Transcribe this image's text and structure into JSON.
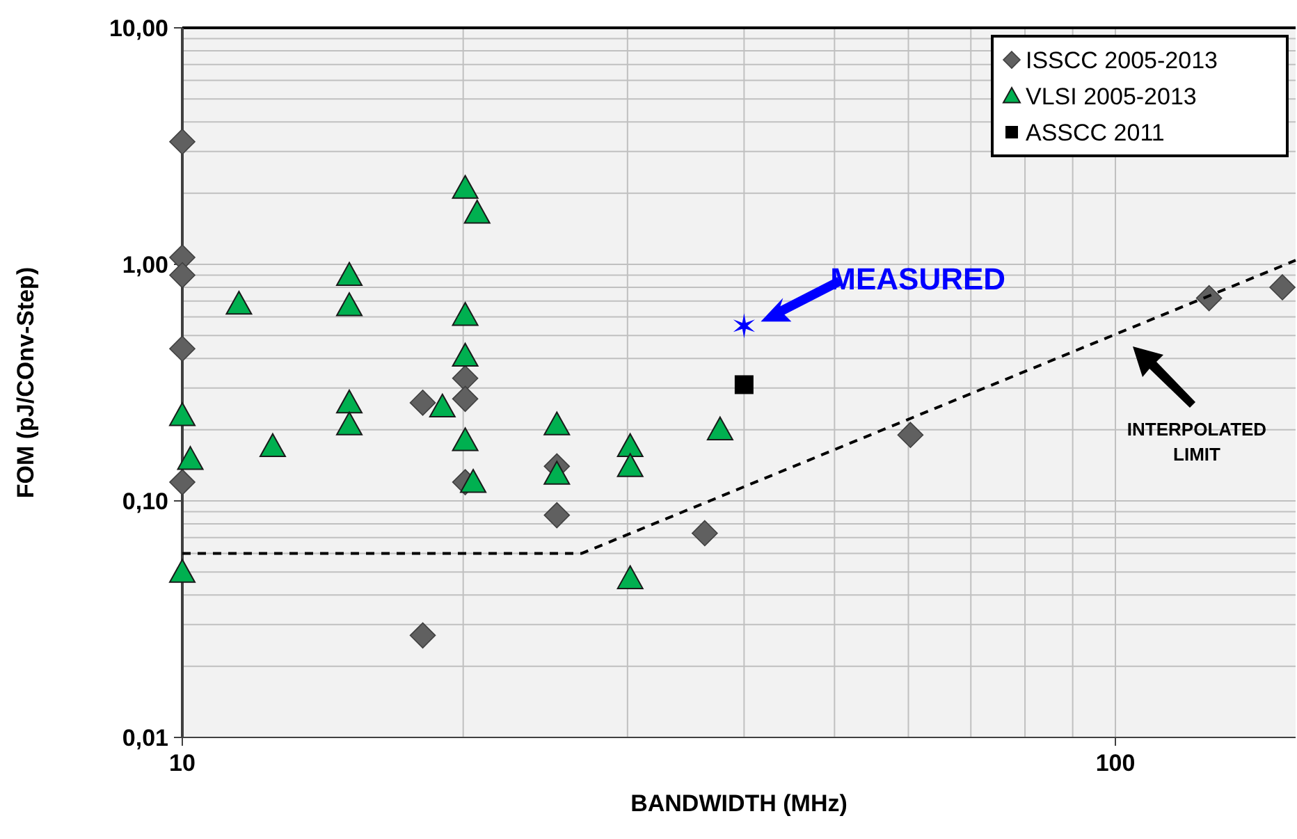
{
  "chart_data": {
    "type": "scatter",
    "xlabel": "BANDWIDTH (MHz)",
    "ylabel": "FOM (pJ/COnv-Step)",
    "log": "xy",
    "grid": true,
    "legend": "top right",
    "xlim": [
      10,
      156
    ],
    "ylim": [
      0.01,
      10
    ],
    "xticks": [
      10,
      {
        "value": 20,
        "label": null
      },
      {
        "value": 30,
        "label": null
      },
      {
        "value": 40,
        "label": null
      },
      {
        "value": 50,
        "label": null
      },
      {
        "value": 60,
        "label": null
      },
      {
        "value": 70,
        "label": null
      },
      {
        "value": 80,
        "label": null
      },
      {
        "value": 90,
        "label": null
      },
      100
    ],
    "yticks": [
      {
        "value": 0.01,
        "label": "0,01"
      },
      {
        "value": 0.02,
        "label": null
      },
      {
        "value": 0.03,
        "label": null
      },
      {
        "value": 0.04,
        "label": null
      },
      {
        "value": 0.05,
        "label": null
      },
      {
        "value": 0.06,
        "label": null
      },
      {
        "value": 0.07,
        "label": null
      },
      {
        "value": 0.08,
        "label": null
      },
      {
        "value": 0.09,
        "label": null
      },
      {
        "value": 0.1,
        "label": "0,10"
      },
      {
        "value": 0.2,
        "label": null
      },
      {
        "value": 0.3,
        "label": null
      },
      {
        "value": 0.4,
        "label": null
      },
      {
        "value": 0.5,
        "label": null
      },
      {
        "value": 0.6,
        "label": null
      },
      {
        "value": 0.7,
        "label": null
      },
      {
        "value": 0.8,
        "label": null
      },
      {
        "value": 0.9,
        "label": null
      },
      {
        "value": 1,
        "label": "1,00"
      },
      {
        "value": 2,
        "label": null
      },
      {
        "value": 3,
        "label": null
      },
      {
        "value": 4,
        "label": null
      },
      {
        "value": 5,
        "label": null
      },
      {
        "value": 6,
        "label": null
      },
      {
        "value": 7,
        "label": null
      },
      {
        "value": 8,
        "label": null
      },
      {
        "value": 9,
        "label": null
      },
      {
        "value": 10,
        "label": "10,00"
      }
    ],
    "series": [
      {
        "name": "ISSCC 2005-2013",
        "marker": "diamond",
        "color": "#606060",
        "x": [
          10,
          10,
          10,
          10,
          10,
          18.1,
          18.1,
          20.1,
          20.1,
          20.1,
          25.2,
          25.2,
          36.3,
          60.3,
          126,
          151
        ],
        "values": [
          3.3,
          1.07,
          0.9,
          0.44,
          0.12,
          0.26,
          0.027,
          0.33,
          0.27,
          0.12,
          0.14,
          0.087,
          0.073,
          0.19,
          0.72,
          0.8
        ]
      },
      {
        "name": "VLSI 2005-2013",
        "marker": "triangle",
        "color": "#00b050",
        "x": [
          10,
          10,
          10.2,
          11.5,
          12.5,
          15.1,
          15.1,
          15.1,
          15.1,
          19,
          20.1,
          20.7,
          20.1,
          20.1,
          20.1,
          20.5,
          25.2,
          25.2,
          30.2,
          30.2,
          30.2,
          37.7
        ],
        "values": [
          0.23,
          0.05,
          0.15,
          0.68,
          0.17,
          0.9,
          0.67,
          0.26,
          0.21,
          0.25,
          2.1,
          1.65,
          0.61,
          0.41,
          0.18,
          0.12,
          0.21,
          0.13,
          0.17,
          0.14,
          0.047,
          0.2
        ]
      },
      {
        "name": "ASSCC 2011",
        "marker": "square",
        "color": "#000000",
        "x": [
          40
        ],
        "values": [
          0.31
        ]
      },
      {
        "marker": "cross",
        "color": "#0000ff",
        "x": [
          40
        ],
        "values": [
          0.55
        ]
      },
      {
        "type": "line",
        "marker": "none",
        "line_style": "dashed",
        "color": "#000000",
        "x": [
          10,
          26.8,
          156
        ],
        "values": [
          0.06,
          0.06,
          1.04
        ]
      }
    ],
    "annotations": [
      {
        "text": "MEASURED",
        "x": 40,
        "y": 0.55
      },
      "INTERPOLATED LIMIT"
    ]
  }
}
